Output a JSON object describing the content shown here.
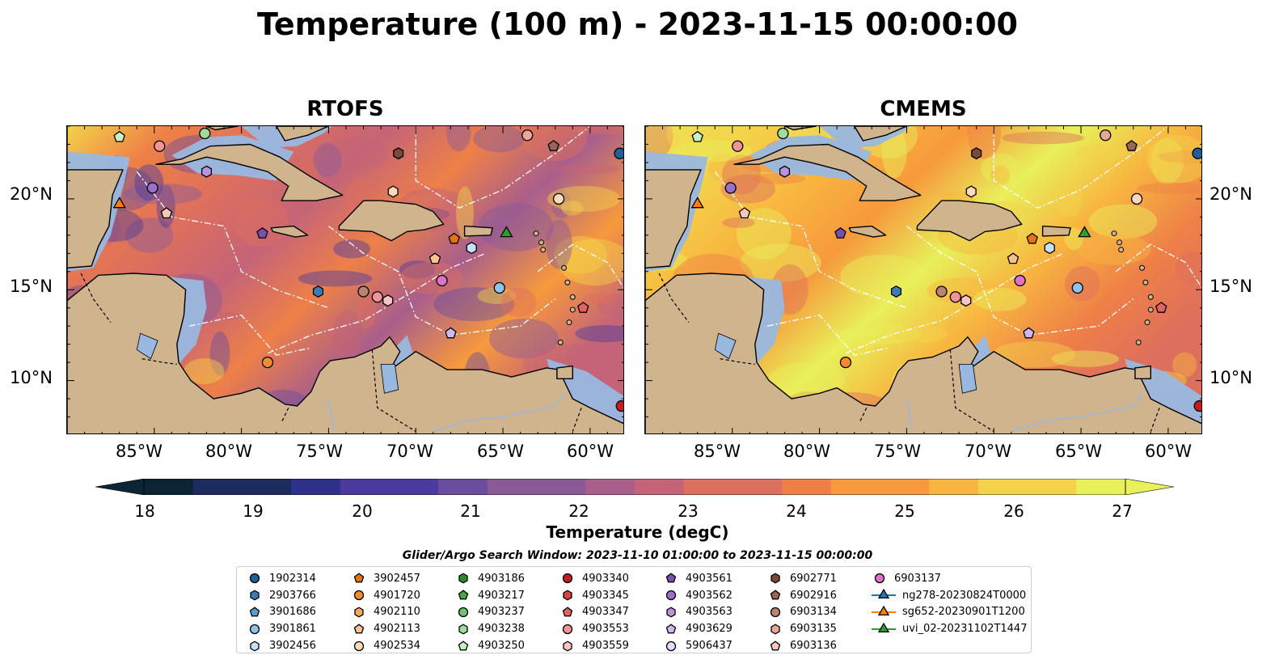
{
  "title": "Temperature (100 m) - 2023-11-15 00:00:00",
  "panels": [
    {
      "title": "RTOFS"
    },
    {
      "title": "CMEMS"
    }
  ],
  "axes": {
    "lat_labels": [
      "20°N",
      "15°N",
      "10°N"
    ],
    "lon_labels": [
      "85°W",
      "80°W",
      "75°W",
      "70°W",
      "65°W",
      "60°W"
    ]
  },
  "colorbar": {
    "label": "Temperature (degC)",
    "ticks": [
      "18",
      "19",
      "20",
      "21",
      "22",
      "23",
      "24",
      "25",
      "26",
      "27"
    ],
    "min": 17.5,
    "max": 27.5,
    "extend": "both"
  },
  "search_window": "Glider/Argo Search Window: 2023-11-10 01:00:00 to 2023-11-15 00:00:00",
  "colors": {
    "land": "#cfb48e",
    "shelf": "#99b8e0",
    "bathy_dark": "#0b2535",
    "warm": "#e8f05a"
  },
  "legend": {
    "columns": [
      [
        {
          "label": "1902314",
          "marker": "circle",
          "color": "#1f5f9e"
        },
        {
          "label": "2903766",
          "marker": "hexagon",
          "color": "#3d7ab5"
        },
        {
          "label": "3901686",
          "marker": "pentagon",
          "color": "#5a9bd4"
        },
        {
          "label": "3901861",
          "marker": "circle",
          "color": "#8fc3ea"
        },
        {
          "label": "3902456",
          "marker": "hexagon",
          "color": "#c6e2f6"
        }
      ],
      [
        {
          "label": "3902457",
          "marker": "pentagon",
          "color": "#e8720c"
        },
        {
          "label": "4901720",
          "marker": "circle",
          "color": "#f58b30"
        },
        {
          "label": "4902110",
          "marker": "hexagon",
          "color": "#f9a65e"
        },
        {
          "label": "4902113",
          "marker": "pentagon",
          "color": "#fbc28e"
        },
        {
          "label": "4902534",
          "marker": "circle",
          "color": "#fdd9b5"
        }
      ],
      [
        {
          "label": "4903186",
          "marker": "hexagon",
          "color": "#2a8c2a"
        },
        {
          "label": "4903217",
          "marker": "pentagon",
          "color": "#44a844"
        },
        {
          "label": "4903237",
          "marker": "circle",
          "color": "#6cc46c"
        },
        {
          "label": "4903238",
          "marker": "hexagon",
          "color": "#9edc9a"
        },
        {
          "label": "4903250",
          "marker": "pentagon",
          "color": "#c9f0c0"
        }
      ],
      [
        {
          "label": "4903340",
          "marker": "circle",
          "color": "#c91b1b"
        },
        {
          "label": "4903345",
          "marker": "hexagon",
          "color": "#d9423f"
        },
        {
          "label": "4903347",
          "marker": "pentagon",
          "color": "#e36262"
        },
        {
          "label": "4903553",
          "marker": "circle",
          "color": "#f09494"
        },
        {
          "label": "4903559",
          "marker": "hexagon",
          "color": "#f9c4c4"
        }
      ],
      [
        {
          "label": "4903561",
          "marker": "pentagon",
          "color": "#7a4fb0"
        },
        {
          "label": "4903562",
          "marker": "circle",
          "color": "#9a70c8"
        },
        {
          "label": "4903563",
          "marker": "hexagon",
          "color": "#b794dc"
        },
        {
          "label": "4903629",
          "marker": "pentagon",
          "color": "#d2b6ee"
        },
        {
          "label": "5906437",
          "marker": "circle",
          "color": "#ead8f8"
        }
      ],
      [
        {
          "label": "6902771",
          "marker": "hexagon",
          "color": "#7a4a38"
        },
        {
          "label": "6902916",
          "marker": "pentagon",
          "color": "#9a6654"
        },
        {
          "label": "6903134",
          "marker": "circle",
          "color": "#bb8472"
        },
        {
          "label": "6903135",
          "marker": "hexagon",
          "color": "#e8a898"
        },
        {
          "label": "6903136",
          "marker": "pentagon",
          "color": "#f5c8b8"
        }
      ],
      [
        {
          "label": "6903137",
          "marker": "circle",
          "color": "#e070c8"
        },
        {
          "label": "ng278-20230824T0000",
          "marker": "triangle",
          "color": "#1f77b4"
        },
        {
          "label": "sg652-20230901T1200",
          "marker": "triangle",
          "color": "#ff7f0e"
        },
        {
          "label": "uvi_02-20231102T1447",
          "marker": "triangle",
          "color": "#2ca02c"
        }
      ]
    ]
  }
}
